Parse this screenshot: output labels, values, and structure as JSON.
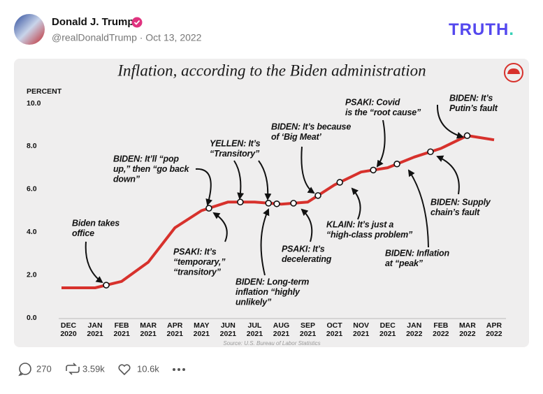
{
  "post": {
    "author": "Donald J. Trump",
    "handle_date": "@realDonaldTrump · Oct 13, 2022",
    "brand": {
      "word": "TRUTH",
      "dot": "."
    },
    "stats": {
      "replies": "270",
      "reposts": "3.59k",
      "likes": "10.6k"
    }
  },
  "chart_data": {
    "type": "line",
    "title": "Inflation, according to the Biden administration",
    "y_label": "PERCENT",
    "categories": [
      "DEC 2020",
      "JAN 2021",
      "FEB 2021",
      "MAR 2021",
      "APR 2021",
      "MAY 2021",
      "JUN 2021",
      "JUL 2021",
      "AUG 2021",
      "SEP 2021",
      "OCT 2021",
      "NOV 2021",
      "DEC 2021",
      "JAN 2022",
      "FEB 2022",
      "MAR 2022",
      "APR 2022"
    ],
    "values": [
      1.4,
      1.4,
      1.7,
      2.6,
      4.2,
      5.0,
      5.4,
      5.4,
      5.3,
      5.4,
      6.2,
      6.8,
      7.0,
      7.5,
      7.9,
      8.5,
      8.3
    ],
    "color": "#d7312c",
    "ylim": [
      0,
      10
    ],
    "yticks": [
      {
        "value": 0,
        "label": "0.0"
      },
      {
        "value": 2,
        "label": "2.0"
      },
      {
        "value": 4,
        "label": "4.0"
      },
      {
        "value": 6,
        "label": "6.0"
      },
      {
        "value": 8,
        "label": "8.0"
      },
      {
        "value": 10,
        "label": "10.0"
      }
    ],
    "grid": false,
    "annotations": [
      {
        "lines": [
          "Biden takes",
          "office"
        ]
      },
      {
        "lines": [
          "BIDEN: It’ll “pop",
          "up,” then “go back",
          "down”"
        ]
      },
      {
        "lines": [
          "YELLEN: It’s",
          "“Transitory”"
        ]
      },
      {
        "lines": [
          "BIDEN: It’s because",
          "of ‘Big Meat’"
        ]
      },
      {
        "lines": [
          "PSAKI: Covid",
          "is the “root cause”"
        ]
      },
      {
        "lines": [
          "BIDEN: It’s",
          "Putin’s fault"
        ]
      },
      {
        "lines": [
          "PSAKI: It’s",
          "“temporary,”",
          "“transitory”"
        ]
      },
      {
        "lines": [
          "BIDEN: Long-term",
          "inflation “highly",
          "unlikely”"
        ]
      },
      {
        "lines": [
          "PSAKI: It’s",
          "decelerating"
        ]
      },
      {
        "lines": [
          "KLAIN: It’s just a",
          "“high-class problem”"
        ]
      },
      {
        "lines": [
          "BIDEN: Inflation",
          "at “peak”"
        ]
      },
      {
        "lines": [
          "BIDEN: Supply",
          "chain’s fault"
        ]
      }
    ],
    "source": "Source: U.S. Bureau of Labor Statistics"
  }
}
